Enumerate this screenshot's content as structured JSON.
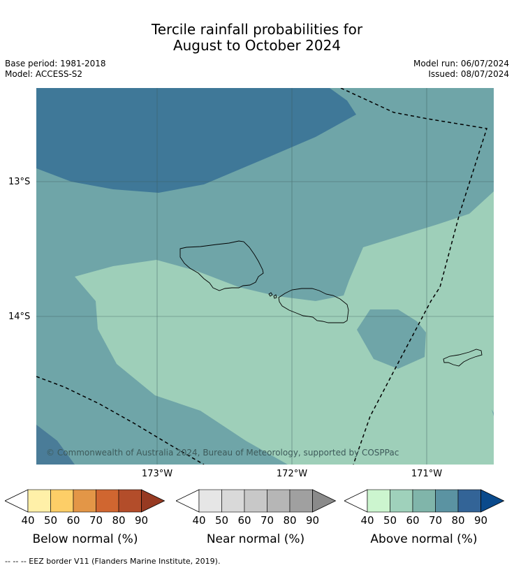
{
  "title": {
    "line1": "Tercile rainfall probabilities for",
    "line2": "August to October 2024"
  },
  "meta": {
    "base_period": "Base period: 1981-2018",
    "model": "Model: ACCESS-S2",
    "model_run": "Model run: 06/07/2024",
    "issued": "Issued: 08/07/2024"
  },
  "map": {
    "lat_labels": [
      "13°S",
      "14°S"
    ],
    "lon_labels": [
      "173°W",
      "172°W",
      "171°W"
    ],
    "copyright": "© Commonwealth of Australia 2024, Bureau of Meteorology, supported by COSPPac",
    "colors": {
      "above_50": "#9ecfb9",
      "above_60": "#6fa5a8",
      "above_70": "#5b93a2",
      "above_80": "#3f7898",
      "dark_corner": "#4a7c98",
      "grid": "#3a5a5a",
      "coast": "#000000"
    }
  },
  "colorbars": [
    {
      "name": "below",
      "title": "Below normal (%)",
      "ticks": [
        "40",
        "50",
        "60",
        "70",
        "80",
        "90"
      ],
      "colors": [
        "#fff0a8",
        "#fdce67",
        "#e39647",
        "#d06630",
        "#b34d2a",
        "#973a22"
      ]
    },
    {
      "name": "near",
      "title": "Near normal (%)",
      "ticks": [
        "40",
        "50",
        "60",
        "70",
        "80",
        "90"
      ],
      "colors": [
        "#e6e6e6",
        "#d9d9d9",
        "#c8c8c8",
        "#b6b6b6",
        "#a0a0a0",
        "#8a8a8a"
      ]
    },
    {
      "name": "above",
      "title": "Above normal (%)",
      "ticks": [
        "40",
        "50",
        "60",
        "70",
        "80",
        "90"
      ],
      "colors": [
        "#ccf5cf",
        "#9fd1bb",
        "#80b5aa",
        "#5b93a2",
        "#336497",
        "#0a4a8c"
      ]
    }
  ],
  "footnote": "--  --  -- EEZ border V11 (Flanders Marine Institute, 2019)."
}
